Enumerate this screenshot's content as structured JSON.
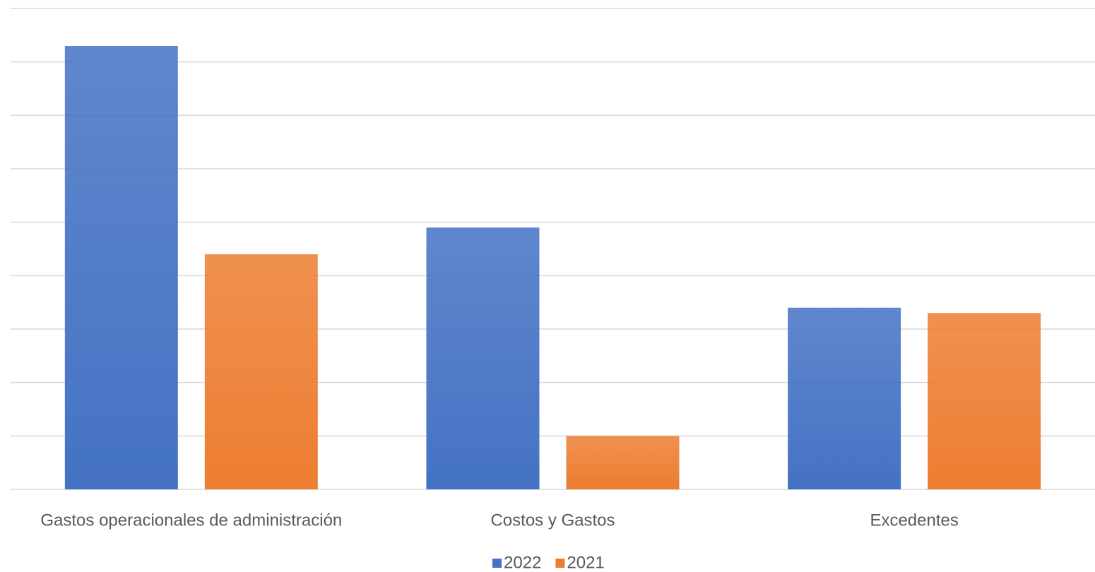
{
  "chart_data": {
    "type": "bar",
    "categories": [
      "Gastos operacionales de administración",
      "Costos y Gastos",
      "Excedentes"
    ],
    "series": [
      {
        "name": "2022",
        "color": "#4472c4",
        "values": [
          8.3,
          4.9,
          3.4
        ]
      },
      {
        "name": "2021",
        "color": "#ed7d31",
        "values": [
          4.4,
          1.0,
          3.3
        ]
      }
    ],
    "ylim": [
      0,
      9
    ],
    "yticks": [
      0,
      1,
      2,
      3,
      4,
      5,
      6,
      7,
      8,
      9
    ],
    "grid": true,
    "legend": "bottom"
  }
}
